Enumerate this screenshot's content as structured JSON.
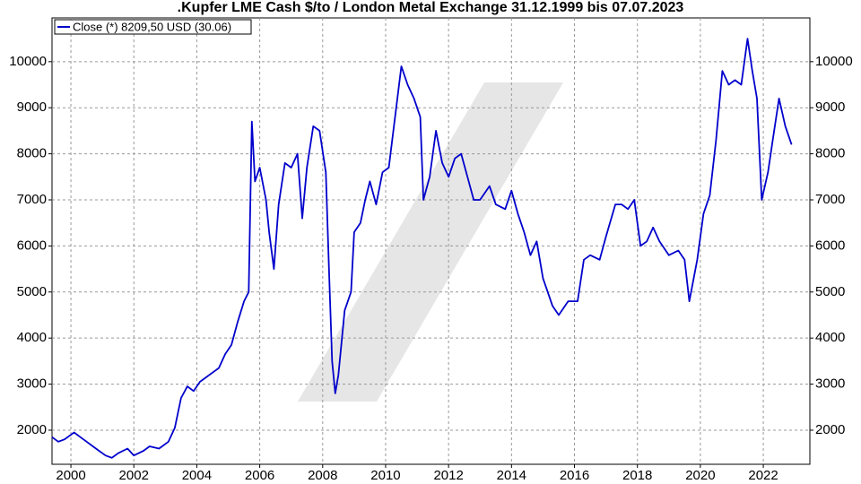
{
  "chart_data": {
    "type": "line",
    "title": ".Kupfer LME Cash $/to / London Metal Exchange 31.12.1999 bis 07.07.2023",
    "xlim": [
      1999.4,
      2023.48
    ],
    "ylim": [
      1260,
      10950
    ],
    "xticks": [
      2000,
      2002,
      2004,
      2006,
      2008,
      2010,
      2012,
      2014,
      2016,
      2018,
      2020,
      2022
    ],
    "yticks": [
      2000,
      3000,
      4000,
      5000,
      6000,
      7000,
      8000,
      9000,
      10000
    ],
    "grid": true,
    "legend": "top-left",
    "series": [
      {
        "name": "Close (*) 8209,50 USD (30.06)",
        "color": "#0000cc",
        "x": [
          1999.4,
          1999.6,
          1999.8,
          2000.1,
          2000.3,
          2000.5,
          2000.7,
          2000.9,
          2001.1,
          2001.3,
          2001.5,
          2001.8,
          2002.0,
          2002.3,
          2002.5,
          2002.8,
          2003.1,
          2003.3,
          2003.5,
          2003.7,
          2003.9,
          2004.1,
          2004.3,
          2004.5,
          2004.7,
          2004.9,
          2005.1,
          2005.3,
          2005.5,
          2005.65,
          2005.75,
          2005.85,
          2006.0,
          2006.2,
          2006.3,
          2006.45,
          2006.6,
          2006.8,
          2007.0,
          2007.2,
          2007.35,
          2007.5,
          2007.7,
          2007.9,
          2008.1,
          2008.2,
          2008.3,
          2008.4,
          2008.5,
          2008.7,
          2008.9,
          2009.0,
          2009.2,
          2009.35,
          2009.5,
          2009.7,
          2009.9,
          2010.1,
          2010.3,
          2010.5,
          2010.7,
          2010.9,
          2011.1,
          2011.2,
          2011.4,
          2011.6,
          2011.8,
          2012.0,
          2012.2,
          2012.4,
          2012.6,
          2012.8,
          2013.0,
          2013.3,
          2013.5,
          2013.8,
          2014.0,
          2014.2,
          2014.4,
          2014.6,
          2014.8,
          2015.0,
          2015.3,
          2015.5,
          2015.8,
          2016.1,
          2016.3,
          2016.5,
          2016.8,
          2017.0,
          2017.3,
          2017.5,
          2017.7,
          2017.9,
          2018.1,
          2018.3,
          2018.5,
          2018.7,
          2019.0,
          2019.3,
          2019.5,
          2019.65,
          2019.9,
          2020.1,
          2020.3,
          2020.5,
          2020.7,
          2020.9,
          2021.1,
          2021.3,
          2021.5,
          2021.65,
          2021.8,
          2021.95,
          2022.15,
          2022.3,
          2022.5,
          2022.7,
          2022.9
        ],
        "values": [
          1850,
          1750,
          1800,
          1950,
          1850,
          1750,
          1650,
          1550,
          1450,
          1400,
          1500,
          1600,
          1450,
          1550,
          1650,
          1600,
          1750,
          2050,
          2700,
          2950,
          2850,
          3050,
          3150,
          3250,
          3350,
          3650,
          3850,
          4350,
          4800,
          5000,
          8700,
          7400,
          7700,
          7000,
          6300,
          5500,
          6900,
          7800,
          7700,
          8000,
          6600,
          7700,
          8600,
          8500,
          7600,
          5500,
          3500,
          2800,
          3200,
          4600,
          5000,
          6300,
          6500,
          7000,
          7400,
          6900,
          7600,
          7700,
          8800,
          9900,
          9500,
          9200,
          8800,
          7000,
          7500,
          8500,
          7800,
          7500,
          7900,
          8000,
          7500,
          7000,
          7000,
          7300,
          6900,
          6800,
          7200,
          6700,
          6300,
          5800,
          6100,
          5300,
          4700,
          4500,
          4800,
          4800,
          5700,
          5800,
          5700,
          6200,
          6900,
          6900,
          6800,
          7000,
          6000,
          6100,
          6400,
          6100,
          5800,
          5900,
          5700,
          4800,
          5700,
          6700,
          7100,
          8300,
          9800,
          9500,
          9600,
          9500,
          10500,
          9800,
          9200,
          7000,
          7600,
          8300,
          9200,
          8600,
          8200
        ]
      }
    ]
  }
}
